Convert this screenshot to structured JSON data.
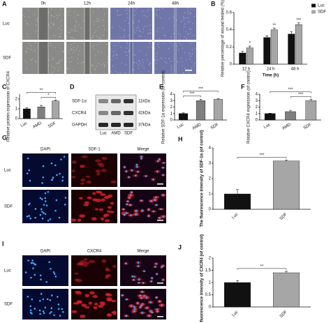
{
  "panel_labels": [
    "A",
    "B",
    "C",
    "D",
    "E",
    "F",
    "G",
    "H",
    "I",
    "J"
  ],
  "wound": {
    "columns": [
      "0h",
      "12h",
      "24h",
      "48h"
    ],
    "rows": [
      "Luc",
      "SDF"
    ]
  },
  "blot": {
    "bands": [
      "SDF-1α",
      "CXCR4",
      "GAPDH"
    ],
    "sizes": [
      "11kDa",
      "42kDa",
      "37kDa"
    ],
    "lanes": [
      "Luc",
      "AMD",
      "SDF"
    ]
  },
  "if_sdf": {
    "columns": [
      "DAPI",
      "SDF-1",
      "Merge"
    ],
    "rows": [
      "Luc",
      "SDF"
    ]
  },
  "if_cxcr4": {
    "columns": [
      "DAPI",
      "CXCR4",
      "Merge"
    ],
    "rows": [
      "Luc",
      "SDF"
    ]
  },
  "chart_data": [
    {
      "type": "bar",
      "ylabel": "Relative percentage of wound healed (%)",
      "xlabel": "Time (h)",
      "categories": [
        "12 h",
        "24 h",
        "48 h"
      ],
      "series": [
        {
          "name": "Luc",
          "color": "#111111",
          "values": [
            0.13,
            0.31,
            0.35
          ],
          "errors": [
            0.02,
            0.02,
            0.03
          ]
        },
        {
          "name": "SDF",
          "color": "#a6a6a6",
          "values": [
            0.19,
            0.4,
            0.46
          ],
          "errors": [
            0.02,
            0.02,
            0.02
          ]
        }
      ],
      "annotations": [
        "*",
        "**",
        "***"
      ],
      "ylim": [
        0,
        0.6
      ],
      "yticks": [
        0,
        0.2,
        0.4,
        0.6
      ],
      "legend": "top-right"
    },
    {
      "type": "bar",
      "ylabel": "Relative protein expression of CXCR4",
      "categories": [
        "Luc",
        "AMD",
        "SDF"
      ],
      "values": [
        1.0,
        1.2,
        1.8
      ],
      "errors": [
        0.1,
        0.15,
        0.1
      ],
      "colors": [
        "#111111",
        "#7f7f7f",
        "#a6a6a6"
      ],
      "annotations": [
        "**",
        "*"
      ],
      "ylim": [
        0,
        2.5
      ],
      "yticks": [
        0,
        1,
        2
      ]
    },
    {
      "type": "bar",
      "ylabel": "Relative SDF-1α expression (of control)",
      "categories": [
        "Luc",
        "AMD",
        "SDF"
      ],
      "values": [
        1.0,
        3.0,
        3.2
      ],
      "errors": [
        0.1,
        0.2,
        0.1
      ],
      "colors": [
        "#111111",
        "#7f7f7f",
        "#a6a6a6"
      ],
      "annotations": [
        "***",
        "***"
      ],
      "ylim": [
        0,
        4
      ],
      "yticks": [
        0,
        1,
        2,
        3,
        4
      ]
    },
    {
      "type": "bar",
      "ylabel": "Relative CXCR4 expression (of control)",
      "categories": [
        "Luc",
        "AMD",
        "SDF"
      ],
      "values": [
        1.0,
        1.3,
        3.0
      ],
      "errors": [
        0.05,
        0.2,
        0.2
      ],
      "colors": [
        "#111111",
        "#7f7f7f",
        "#a6a6a6"
      ],
      "annotations": [
        "***",
        "***"
      ],
      "ylim": [
        0,
        4
      ],
      "yticks": [
        0,
        1,
        2,
        3,
        4
      ]
    },
    {
      "type": "bar",
      "ylabel": "The fluorescence intensity of SDF-1α (of control)",
      "categories": [
        "Luc",
        "SDF"
      ],
      "values": [
        1.0,
        3.15
      ],
      "errors": [
        0.28,
        0.06
      ],
      "colors": [
        "#111111",
        "#a6a6a6"
      ],
      "annotations": [
        "***"
      ],
      "ylim": [
        0,
        4
      ],
      "yticks": [
        0,
        1,
        2,
        3,
        4
      ]
    },
    {
      "type": "bar",
      "ylabel": "The fluorescence intensity of CXCR4 (of control)",
      "categories": [
        "Luc",
        "SDF"
      ],
      "values": [
        1.0,
        1.4
      ],
      "errors": [
        0.08,
        0.06
      ],
      "colors": [
        "#111111",
        "#a6a6a6"
      ],
      "annotations": [
        "**"
      ],
      "ylim": [
        0,
        2
      ],
      "yticks": [
        0,
        0.5,
        1,
        1.5,
        2
      ]
    }
  ]
}
